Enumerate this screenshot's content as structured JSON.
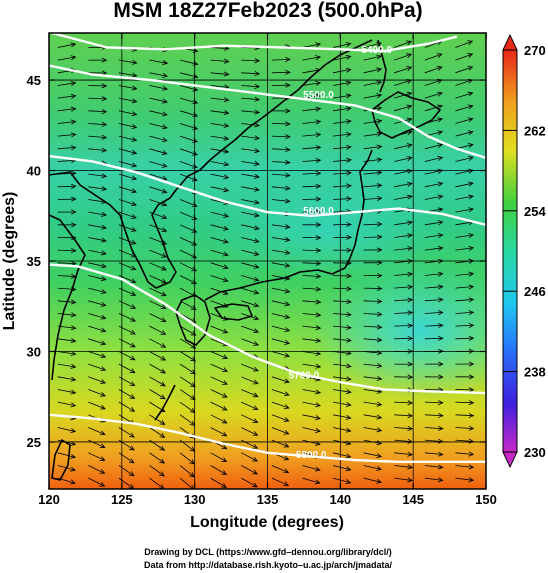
{
  "chart_data": {
    "type": "heatmap",
    "title": "MSM 18Z27Feb2023 (500.0hPa)",
    "xlabel": "Longitude (degrees)",
    "ylabel": "Latitude  (degrees)",
    "xlim": [
      120,
      150
    ],
    "ylim": [
      22.4,
      47.6
    ],
    "x_ticks": [
      "120",
      "125",
      "130",
      "135",
      "140",
      "145",
      "150"
    ],
    "y_ticks": [
      "25",
      "30",
      "35",
      "40",
      "45"
    ],
    "colorbar": {
      "min": 230,
      "max": 270,
      "tick_labels": [
        "230",
        "238",
        "246",
        "254",
        "262",
        "270"
      ],
      "tick_values": [
        230,
        238,
        246,
        254,
        262,
        270
      ]
    },
    "contour_labels": [
      "5400.0",
      "5500.0",
      "5600.0",
      "5700.0",
      "5800.0"
    ],
    "contours": [
      {
        "label": "5400.0",
        "label_at": [
          142.5,
          46.5
        ],
        "points": [
          [
            120.2,
            47.6
          ],
          [
            124,
            46.8
          ],
          [
            128,
            46.7
          ],
          [
            132,
            46.9
          ],
          [
            136,
            46.8
          ],
          [
            140,
            46.7
          ],
          [
            143,
            46.6
          ],
          [
            146,
            47.0
          ],
          [
            148,
            47.4
          ]
        ]
      },
      {
        "label": "5500.0",
        "label_at": [
          138.5,
          44.0
        ],
        "points": [
          [
            120,
            45.8
          ],
          [
            123,
            45.3
          ],
          [
            127,
            45.0
          ],
          [
            131,
            44.6
          ],
          [
            135,
            44.2
          ],
          [
            138,
            43.9
          ],
          [
            141,
            43.6
          ],
          [
            144,
            42.9
          ],
          [
            146,
            41.9
          ],
          [
            148,
            41.2
          ],
          [
            150,
            40.7
          ]
        ]
      },
      {
        "label": "5600.0",
        "label_at": [
          138.5,
          37.6
        ],
        "points": [
          [
            120,
            40.8
          ],
          [
            123,
            40.5
          ],
          [
            126,
            39.9
          ],
          [
            129,
            39.1
          ],
          [
            132,
            38.3
          ],
          [
            135,
            37.7
          ],
          [
            138,
            37.5
          ],
          [
            141,
            37.7
          ],
          [
            144,
            37.9
          ],
          [
            147,
            37.6
          ],
          [
            150,
            37.0
          ]
        ]
      },
      {
        "label": "5700.0",
        "label_at": [
          137.5,
          28.5
        ],
        "points": [
          [
            120,
            34.8
          ],
          [
            122,
            34.7
          ],
          [
            125,
            34.0
          ],
          [
            128,
            32.6
          ],
          [
            131,
            30.9
          ],
          [
            134,
            29.7
          ],
          [
            137,
            28.8
          ],
          [
            140,
            28.3
          ],
          [
            143,
            27.9
          ],
          [
            146,
            27.8
          ],
          [
            150,
            27.7
          ]
        ]
      },
      {
        "label": "5800.0",
        "label_at": [
          138.0,
          24.1
        ],
        "points": [
          [
            120,
            26.5
          ],
          [
            123,
            26.3
          ],
          [
            126,
            26.0
          ],
          [
            129,
            25.5
          ],
          [
            132,
            24.9
          ],
          [
            135,
            24.4
          ],
          [
            138,
            24.2
          ],
          [
            141,
            24.0
          ],
          [
            144,
            23.9
          ],
          [
            147,
            23.9
          ],
          [
            150,
            23.9
          ]
        ]
      }
    ],
    "colors": {
      "band_270": "#e8331c",
      "band_262": "#e0e020",
      "band_254": "#28c850",
      "band_246": "#28d0c8",
      "band_238": "#2850f0",
      "band_230": "#c828c8",
      "wind_arrows": "#000000",
      "contours": "#ffffff",
      "coastline": "#000000"
    }
  },
  "credits": {
    "line1": "Drawing by DCL (https://www.gfd–dennou.org/library/dcl/)",
    "line2": "Data from http://database.rish.kyoto–u.ac.jp/arch/jmadata/"
  }
}
